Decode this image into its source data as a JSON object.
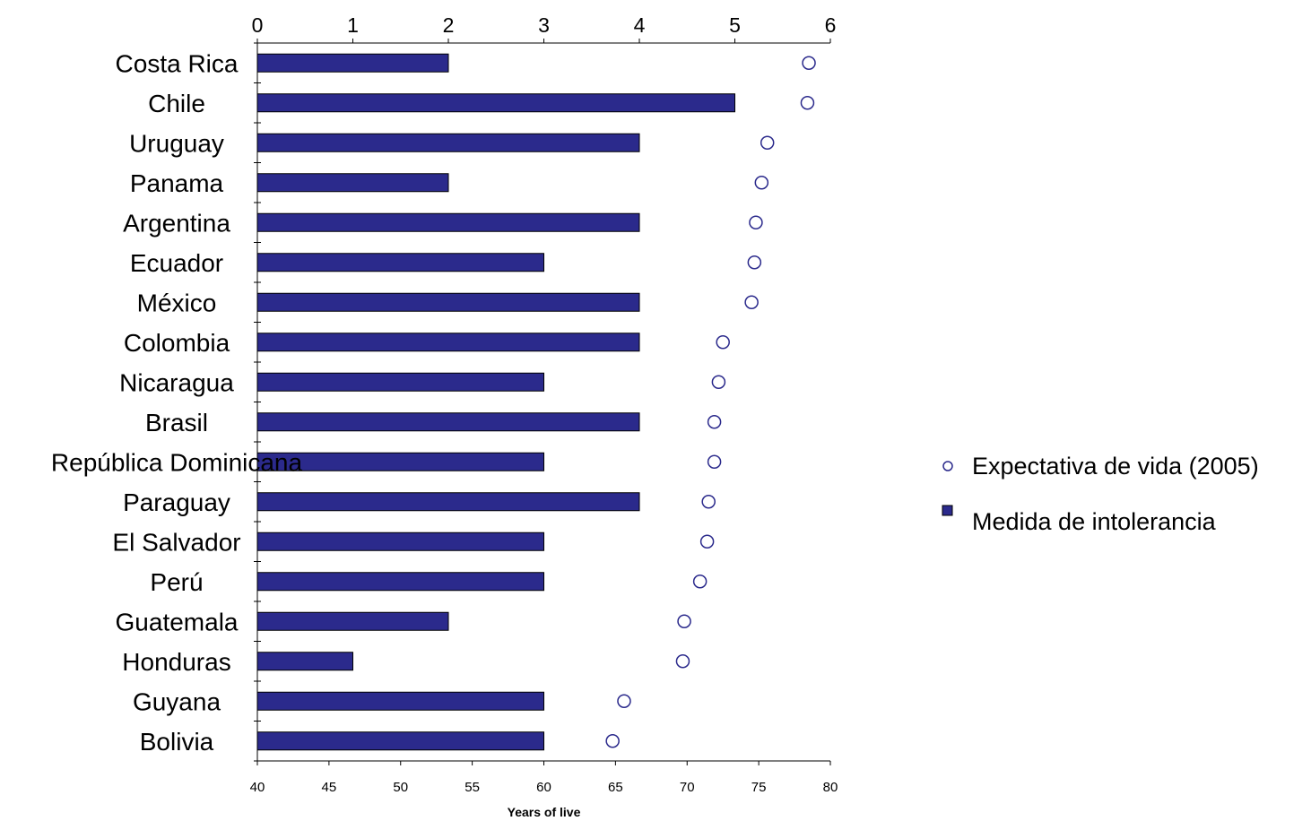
{
  "chart_data": {
    "type": "bar",
    "categories": [
      "Costa Rica",
      "Chile",
      "Uruguay",
      "Panama",
      "Argentina",
      "Ecuador",
      "México",
      "Colombia",
      "Nicaragua",
      "Brasil",
      "República Dominicana",
      "Paraguay",
      "El Salvador",
      "Perú",
      "Guatemala",
      "Honduras",
      "Guyana",
      "Bolivia"
    ],
    "series": [
      {
        "name": "Medida de intolerancia",
        "axis": "top",
        "mark": "bar",
        "color": "#2B2A8C",
        "values": [
          2,
          5,
          4,
          2,
          4,
          3,
          4,
          4,
          3,
          4,
          3,
          4,
          3,
          3,
          2,
          1,
          3,
          3
        ]
      },
      {
        "name": "Expectativa de vida (2005)",
        "axis": "bottom",
        "mark": "circle",
        "color": "#2B2A8C",
        "values": [
          78.5,
          78.4,
          75.6,
          75.2,
          74.8,
          74.7,
          74.5,
          72.5,
          72.2,
          71.9,
          71.9,
          71.5,
          71.4,
          70.9,
          69.8,
          69.7,
          65.6,
          64.8
        ]
      }
    ],
    "top_axis": {
      "min": 0,
      "max": 6,
      "ticks": [
        "0",
        "1",
        "2",
        "3",
        "4",
        "5",
        "6"
      ]
    },
    "bottom_axis": {
      "min": 40,
      "max": 80,
      "ticks": [
        "40",
        "45",
        "50",
        "55",
        "60",
        "65",
        "70",
        "75",
        "80"
      ]
    },
    "xlabel": "Years of live",
    "legend": {
      "placement": "right",
      "items": [
        "Expectativa de vida (2005)",
        "Medida de intolerancia"
      ]
    }
  }
}
